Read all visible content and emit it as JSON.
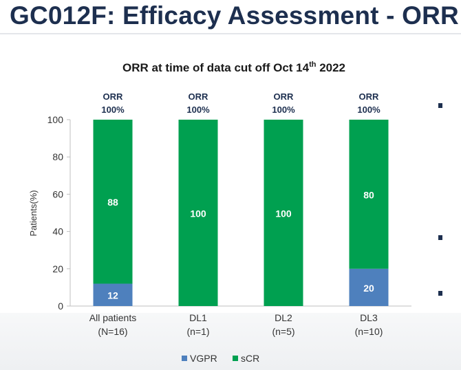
{
  "slide": {
    "title": "GC012F: Efficacy Assessment - ORR"
  },
  "chart_data": {
    "type": "bar",
    "stacked": true,
    "title": "ORR at time of data cut off Oct 14th 2022",
    "title_main": "ORR  at time of data cut off Oct 14",
    "title_sup": "th",
    "title_end": " 2022",
    "xlabel": "",
    "ylabel": "Patients(%)",
    "ylim": [
      0,
      100
    ],
    "yticks": [
      0,
      20,
      40,
      60,
      80,
      100
    ],
    "categories": [
      {
        "line1": "All patients",
        "line2": "(N=16)"
      },
      {
        "line1": "DL1",
        "line2": "(n=1)"
      },
      {
        "line1": "DL2",
        "line2": "(n=5)"
      },
      {
        "line1": "DL3",
        "line2": "(n=10)"
      }
    ],
    "series": [
      {
        "name": "VGPR",
        "color": "#4e80bd",
        "values": [
          12,
          0,
          0,
          20
        ]
      },
      {
        "name": "sCR",
        "color": "#00a050",
        "values": [
          88,
          100,
          100,
          80
        ]
      }
    ],
    "orr": [
      {
        "label": "ORR",
        "value": "100%"
      },
      {
        "label": "ORR",
        "value": "100%"
      },
      {
        "label": "ORR",
        "value": "100%"
      },
      {
        "label": "ORR",
        "value": "100%"
      }
    ],
    "legend_position": "bottom"
  }
}
